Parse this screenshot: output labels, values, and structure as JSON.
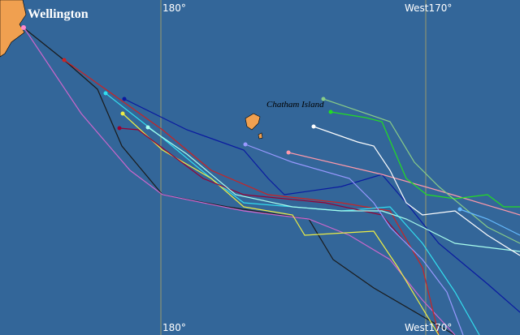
{
  "map": {
    "city_label": "Wellington",
    "island_label": "Chatham Island",
    "meridian_labels_top": [
      "180°",
      "West170°"
    ],
    "meridian_labels_bottom": [
      "180°",
      "West170°"
    ]
  }
}
